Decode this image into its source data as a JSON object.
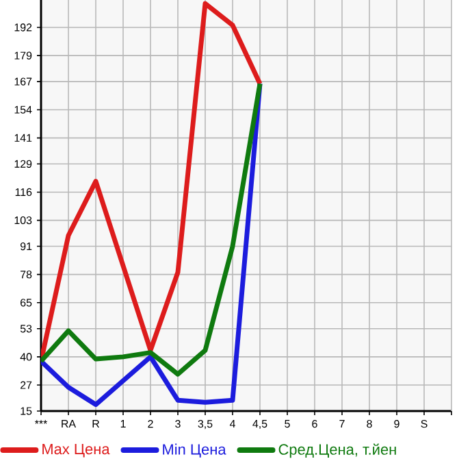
{
  "chart_data": {
    "type": "line",
    "categories": [
      "***",
      "RA",
      "R",
      "1",
      "2",
      "3",
      "3,5",
      "4",
      "4,5",
      "5",
      "6",
      "7",
      "8",
      "9",
      "S"
    ],
    "series": [
      {
        "name": "Max Цена",
        "color": "#dd1c1c",
        "values": [
          38,
          96,
          121,
          82,
          43,
          79,
          203,
          193,
          166,
          null,
          null,
          null,
          null,
          null,
          null
        ]
      },
      {
        "name": "Min Цена",
        "color": "#1c1cdd",
        "values": [
          38,
          26,
          18,
          29,
          40,
          20,
          19,
          20,
          166,
          null,
          null,
          null,
          null,
          null,
          null
        ]
      },
      {
        "name": "Сред.Цена, т.йен",
        "color": "#0f7a0f",
        "values": [
          38,
          52,
          39,
          40,
          42,
          32,
          43,
          91,
          166,
          null,
          null,
          null,
          null,
          null,
          null
        ]
      }
    ],
    "ylim": [
      15,
      204.64
    ],
    "yticks": [
      15,
      27,
      40,
      53,
      65,
      78,
      91,
      103,
      116,
      129,
      141,
      154,
      167,
      179,
      192
    ],
    "grid": true,
    "legend": "bottom",
    "marker": "none",
    "line_style": "solid"
  }
}
